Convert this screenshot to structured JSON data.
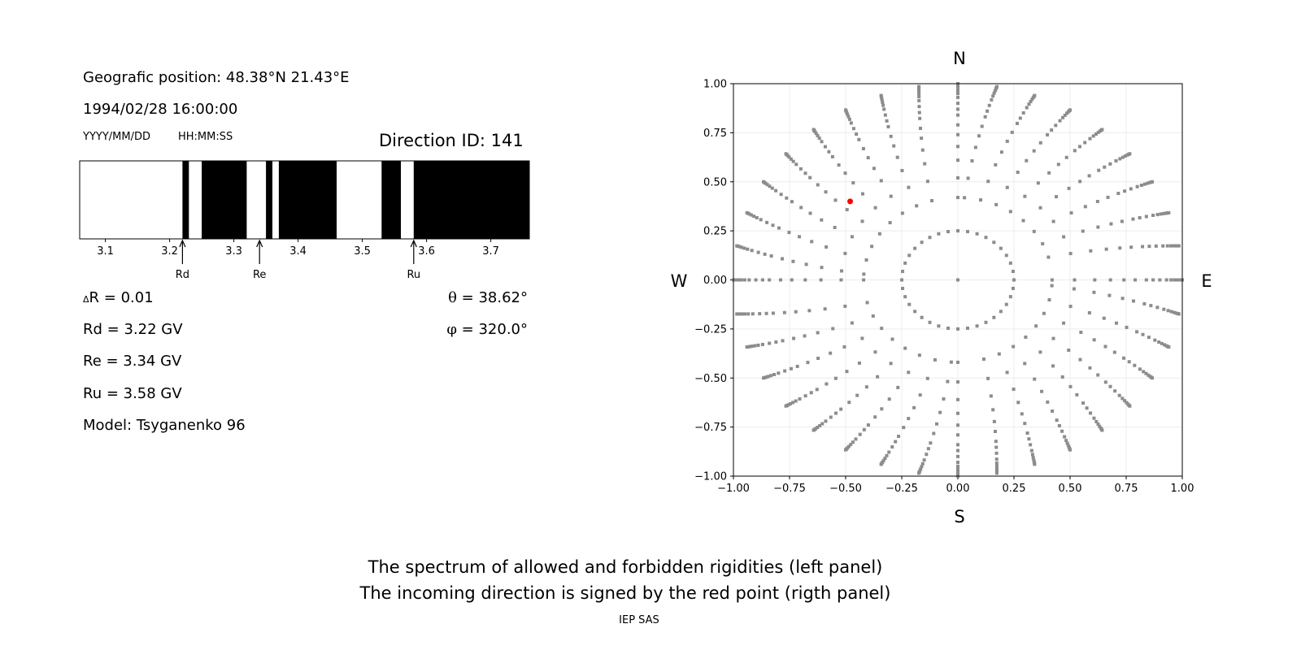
{
  "info": {
    "position": "Geografic position: 48.38°N 21.43°E",
    "datetime": "1994/02/28 16:00:00",
    "date_format": "YYYY/MM/DD",
    "time_format": "HH:MM:SS",
    "direction_id": "Direction ID: 141",
    "delta_r_symbol": "Δ",
    "delta_r": "R = 0.01",
    "rd": "Rd = 3.22 GV",
    "re": "Re = 3.34 GV",
    "ru": "Ru = 3.58 GV",
    "model": "Model: Tsyganenko 96",
    "theta_symbol": "θ",
    "theta": " = 38.62°",
    "phi_symbol": "φ",
    "phi": " = 320.0°"
  },
  "captions": {
    "line1": "The spectrum of allowed and forbidden rigidities (left panel)",
    "line2": "The incoming direction is signed by the red point (rigth panel)",
    "credit": "IEP SAS"
  },
  "chart_data": [
    {
      "type": "bar",
      "description_kind": "rigidity spectrum bands",
      "xlim": [
        3.06,
        3.76
      ],
      "xticks": [
        "3.1",
        "3.2",
        "3.3",
        "3.4",
        "3.5",
        "3.6",
        "3.7"
      ],
      "forbidden_bands": [
        [
          3.22,
          3.23
        ],
        [
          3.25,
          3.32
        ],
        [
          3.35,
          3.36
        ],
        [
          3.37,
          3.46
        ],
        [
          3.53,
          3.56
        ],
        [
          3.58,
          3.76
        ]
      ],
      "allowed_color": "#ffffff",
      "forbidden_color": "#000000",
      "annotations": [
        {
          "label": "Rd",
          "x": 3.22
        },
        {
          "label": "Re",
          "x": 3.34
        },
        {
          "label": "Ru",
          "x": 3.58
        }
      ]
    },
    {
      "type": "scatter",
      "xlim": [
        -1.0,
        1.0
      ],
      "ylim": [
        -1.0,
        1.0
      ],
      "xticks": [
        "−1.00",
        "−0.75",
        "−0.50",
        "−0.25",
        "0.00",
        "0.25",
        "0.50",
        "0.75",
        "1.00"
      ],
      "yticks": [
        "−1.00",
        "−0.75",
        "−0.50",
        "−0.25",
        "0.00",
        "0.25",
        "0.50",
        "0.75",
        "1.00"
      ],
      "grid": true,
      "directions": {
        "top": "N",
        "bottom": "S",
        "left": "W",
        "right": "E"
      },
      "grid_points": {
        "color": "#8c8c8c",
        "azimuth_step_deg": 10,
        "center": [
          0,
          0
        ],
        "inner_ring_radius": 0.25,
        "spoke_radii": [
          0.42,
          0.52,
          0.61,
          0.68,
          0.74,
          0.79,
          0.84,
          0.87,
          0.9,
          0.93,
          0.95,
          0.965,
          0.978,
          0.988,
          0.995,
          1.0
        ]
      },
      "incoming_direction": {
        "x": -0.48,
        "y": 0.4,
        "color": "#ff0000"
      }
    }
  ]
}
